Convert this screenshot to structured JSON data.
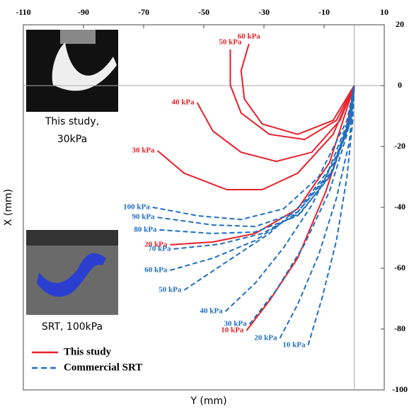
{
  "chart_data": {
    "type": "line",
    "x_label": "Y (mm)",
    "y_label": "X (mm)",
    "xlim": [
      -110,
      10
    ],
    "xticks": [
      -110,
      -90,
      -70,
      -50,
      -30,
      -10,
      10
    ],
    "ylim": [
      -100,
      20
    ],
    "yticks": [
      20,
      0,
      -20,
      -40,
      -60,
      -80,
      -100
    ],
    "zero_lines": true,
    "groups": [
      {
        "name": "This study",
        "color": "#e8202a",
        "dashed": false,
        "series": [
          {
            "name": "60 kPa",
            "x": [
              -35,
              -37.6,
              -36.5,
              -30.6,
              -18.8,
              -7,
              0
            ],
            "y": [
              13.7,
              4.9,
              -4.4,
              -12.6,
              -16,
              -11.4,
              0
            ]
          },
          {
            "name": "50 kPa",
            "x": [
              -41.2,
              -41.2,
              -37.6,
              -28.2,
              -16.5,
              -5.9,
              0
            ],
            "y": [
              11.9,
              0.2,
              -9,
              -16,
              -17.7,
              -11.4,
              0
            ]
          },
          {
            "name": "40 kPa",
            "x": [
              -52.2,
              -47,
              -37.6,
              -25.9,
              -14.1,
              -4.7,
              0
            ],
            "y": [
              -5.6,
              -14.9,
              -21.9,
              -24.9,
              -21.9,
              -11.4,
              0
            ]
          },
          {
            "name": "30 kPa",
            "x": [
              -65.4,
              -56.5,
              -42.4,
              -30.6,
              -18.8,
              -7,
              0
            ],
            "y": [
              -21.4,
              -28.8,
              -34.2,
              -34.2,
              -28.8,
              -16,
              0
            ]
          },
          {
            "name": "20 kPa",
            "x": [
              -61.2,
              -47,
              -32.9,
              -18.8,
              -8.2,
              0
            ],
            "y": [
              -52.3,
              -51.4,
              -48.6,
              -40.5,
              -25.3,
              0
            ]
          },
          {
            "name": "10 kPa",
            "x": [
              -35.8,
              -28.2,
              -18.8,
              -9.4,
              -2.4,
              0
            ],
            "y": [
              -80.5,
              -70.7,
              -56.7,
              -34.7,
              -13.7,
              0
            ]
          }
        ]
      },
      {
        "name": "Commercial SRT",
        "color": "#1f6fc0",
        "dashed": true,
        "series": [
          {
            "name": "100 kPa",
            "x": [
              -67,
              -51.8,
              -37.6,
              -23.5,
              -11.8,
              -2.4,
              0
            ],
            "y": [
              -40,
              -42.8,
              -44,
              -40.5,
              -30,
              -11.4,
              0
            ]
          },
          {
            "name": "90 kPa",
            "x": [
              -65.4,
              -47,
              -32.9,
              -18.8,
              -9.4,
              -1.9,
              0
            ],
            "y": [
              -43.3,
              -45.8,
              -46.3,
              -41.6,
              -30,
              -11.4,
              0
            ]
          },
          {
            "name": "80 kPa",
            "x": [
              -64.7,
              -47,
              -32.9,
              -18.8,
              -8.2,
              -1.6,
              0
            ],
            "y": [
              -47.4,
              -48.6,
              -48.1,
              -42.8,
              -30,
              -11.4,
              0
            ]
          },
          {
            "name": "70 kPa",
            "x": [
              -60,
              -44.7,
              -30.6,
              -17.6,
              -7.5,
              -1.4,
              0
            ],
            "y": [
              -53.7,
              -52.1,
              -48.6,
              -41.6,
              -28.8,
              -11.4,
              0
            ]
          },
          {
            "name": "60 kPa",
            "x": [
              -61.2,
              -47,
              -32.9,
              -18.8,
              -7,
              -1.2,
              0
            ],
            "y": [
              -60.7,
              -56.7,
              -50.9,
              -41.6,
              -27.7,
              -11.4,
              0
            ]
          },
          {
            "name": "50 kPa",
            "x": [
              -56.5,
              -42.4,
              -28.2,
              -16.5,
              -6.6,
              -0.9,
              0
            ],
            "y": [
              -67.2,
              -57.9,
              -48.6,
              -38.1,
              -25.3,
              -11.4,
              0
            ]
          },
          {
            "name": "40 kPa",
            "x": [
              -42.8,
              -32.9,
              -23.5,
              -14.1,
              -5.9,
              -0.7,
              0
            ],
            "y": [
              -74.2,
              -64.9,
              -53.3,
              -39.3,
              -23,
              -9,
              0
            ]
          },
          {
            "name": "30 kPa",
            "x": [
              -34.8,
              -25.9,
              -16.5,
              -8.2,
              -2.4,
              -0.5,
              0
            ],
            "y": [
              -78.4,
              -67.2,
              -52.1,
              -34.7,
              -16,
              -6.7,
              0
            ]
          },
          {
            "name": "20 kPa",
            "x": [
              -24.7,
              -18.8,
              -11.8,
              -5.9,
              -1.6,
              0
            ],
            "y": [
              -83,
              -71.9,
              -55.6,
              -37,
              -18.4,
              0
            ]
          },
          {
            "name": "10 kPa",
            "x": [
              -15.3,
              -10.6,
              -5.9,
              -2.4,
              -0.5,
              0
            ],
            "y": [
              -85.3,
              -69.5,
              -50.9,
              -30,
              -11.4,
              0
            ]
          }
        ]
      }
    ],
    "images": [
      {
        "caption": "This study,\n30kPa"
      },
      {
        "caption": "SRT, 100kPa"
      }
    ]
  }
}
